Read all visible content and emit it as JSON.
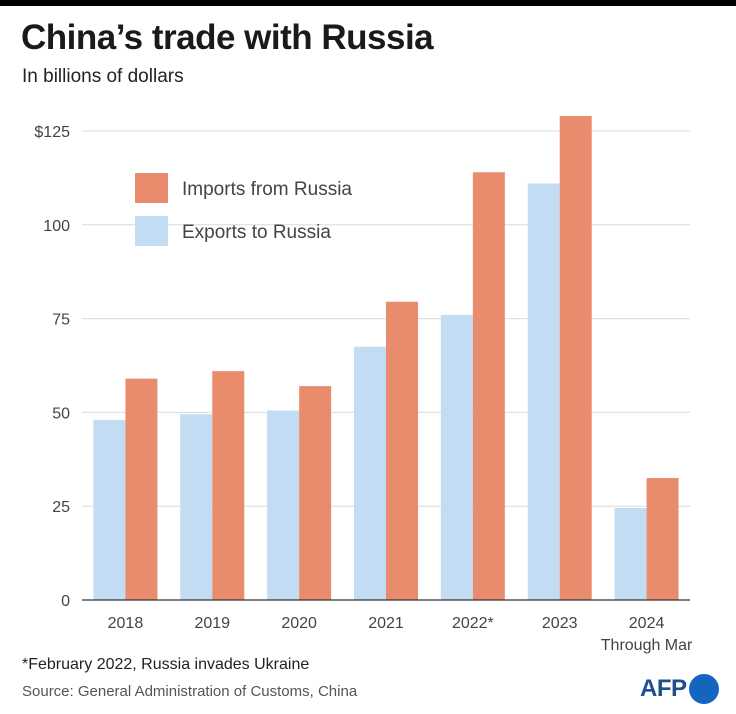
{
  "header": {
    "title": "China’s trade with Russia",
    "subtitle": "In billions of dollars"
  },
  "chart_data": {
    "type": "bar",
    "categories": [
      "2018",
      "2019",
      "2020",
      "2021",
      "2022*",
      "2023",
      "2024\nThrough Mar"
    ],
    "series": [
      {
        "name": "Exports to Russia",
        "values": [
          48,
          49.5,
          50.5,
          67.5,
          76,
          111,
          24.5
        ],
        "color": "#c2dcf3"
      },
      {
        "name": "Imports from Russia",
        "values": [
          59,
          61,
          57,
          79.5,
          114,
          129,
          32.5
        ],
        "color": "#e98c6e"
      }
    ],
    "yticks": [
      {
        "value": 0,
        "label": "0"
      },
      {
        "value": 25,
        "label": "25"
      },
      {
        "value": 50,
        "label": "50"
      },
      {
        "value": 75,
        "label": "75"
      },
      {
        "value": 100,
        "label": "100"
      },
      {
        "value": 125,
        "label": "$125"
      }
    ],
    "ylim": [
      0,
      125
    ],
    "grid": true,
    "legend": [
      {
        "label": "Imports from Russia",
        "color": "#e98c6e"
      },
      {
        "label": "Exports to Russia",
        "color": "#c2dcf3"
      }
    ],
    "legend_position": "top-left"
  },
  "footer": {
    "note": "*February 2022, Russia invades Ukraine",
    "source": "Source: General Administration of Customs,  China",
    "logo_text": "AFP"
  }
}
